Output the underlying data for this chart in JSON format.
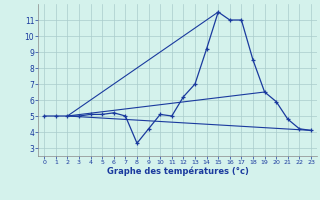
{
  "title": "Graphe des températures (°c)",
  "hours": [
    0,
    1,
    2,
    3,
    4,
    5,
    6,
    7,
    8,
    9,
    10,
    11,
    12,
    13,
    14,
    15,
    16,
    17,
    18,
    19,
    20,
    21,
    22,
    23
  ],
  "temp_curve": [
    5.0,
    5.0,
    5.0,
    5.0,
    5.1,
    5.1,
    5.2,
    5.0,
    3.3,
    4.2,
    5.1,
    5.0,
    6.2,
    7.0,
    9.2,
    11.5,
    11.0,
    11.0,
    8.5,
    6.5,
    5.9,
    4.8,
    4.2,
    4.1
  ],
  "line_color": "#1a3a9e",
  "bg_color": "#d4f2ec",
  "grid_color": "#aacccc",
  "ylim": [
    2.5,
    12.0
  ],
  "xlim": [
    -0.5,
    23.5
  ],
  "yticks": [
    3,
    4,
    5,
    6,
    7,
    8,
    9,
    10,
    11
  ],
  "xticks": [
    0,
    1,
    2,
    3,
    4,
    5,
    6,
    7,
    8,
    9,
    10,
    11,
    12,
    13,
    14,
    15,
    16,
    17,
    18,
    19,
    20,
    21,
    22,
    23
  ],
  "trend1_x": [
    2,
    23
  ],
  "trend1_y": [
    5.0,
    4.1
  ],
  "trend2_x": [
    2,
    15
  ],
  "trend2_y": [
    5.0,
    11.5
  ],
  "trend3_x": [
    2,
    19
  ],
  "trend3_y": [
    5.0,
    6.5
  ]
}
